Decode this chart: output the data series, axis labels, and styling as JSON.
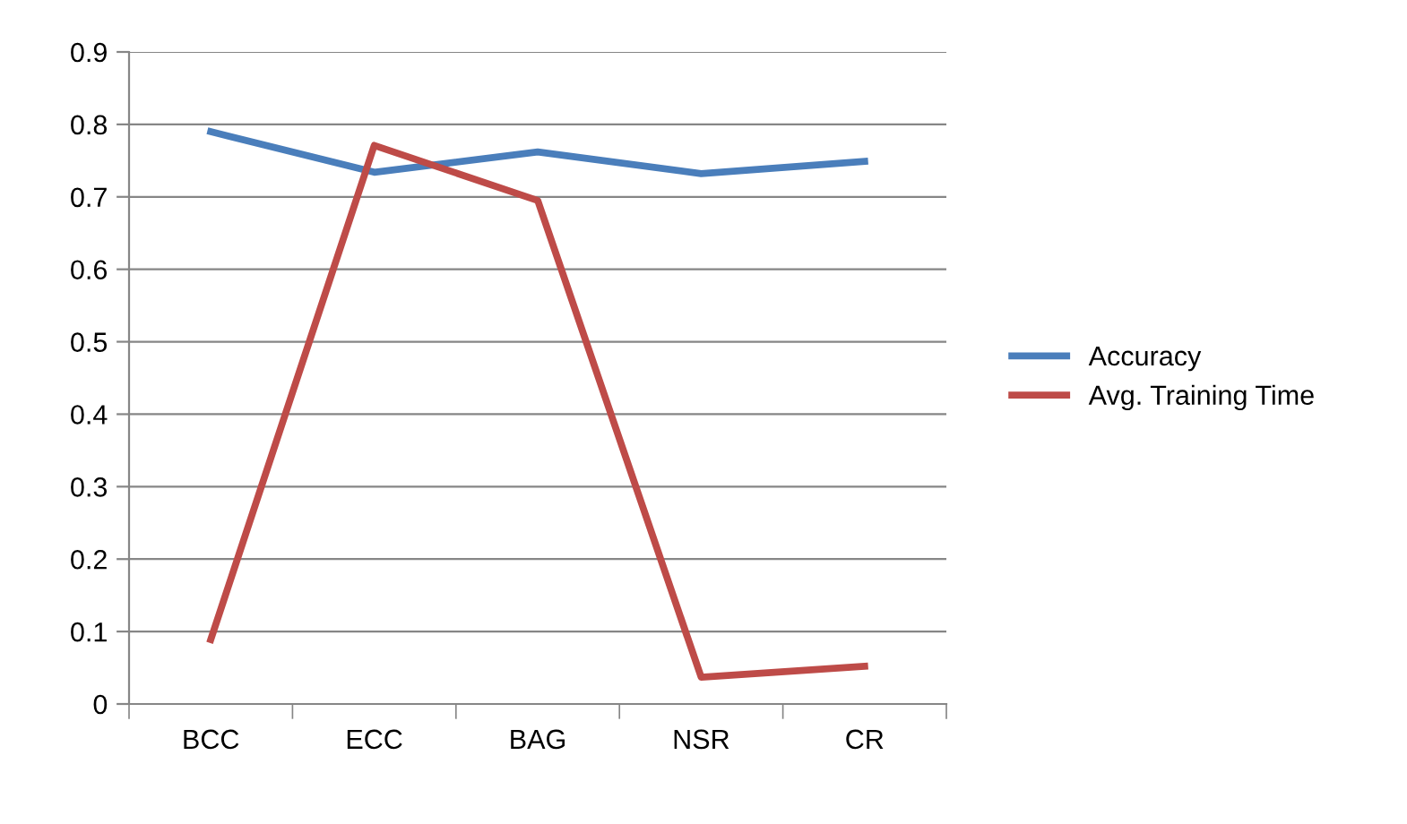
{
  "chart_data": {
    "type": "line",
    "categories": [
      "BCC",
      "ECC",
      "BAG",
      "NSR",
      "CR"
    ],
    "series": [
      {
        "name": "Accuracy",
        "color": "#4a7ebb",
        "values": [
          0.79,
          0.734,
          0.762,
          0.732,
          0.749
        ]
      },
      {
        "name": "Avg. Training Time",
        "color": "#be4b48",
        "values": [
          0.089,
          0.771,
          0.695,
          0.037,
          0.052
        ]
      }
    ],
    "ylim": [
      0,
      0.9
    ],
    "yticks": [
      0,
      0.1,
      0.2,
      0.3,
      0.4,
      0.5,
      0.6,
      0.7,
      0.8,
      0.9
    ],
    "grid": "y",
    "legend": "right",
    "marker": "none",
    "line_style": "solid"
  }
}
